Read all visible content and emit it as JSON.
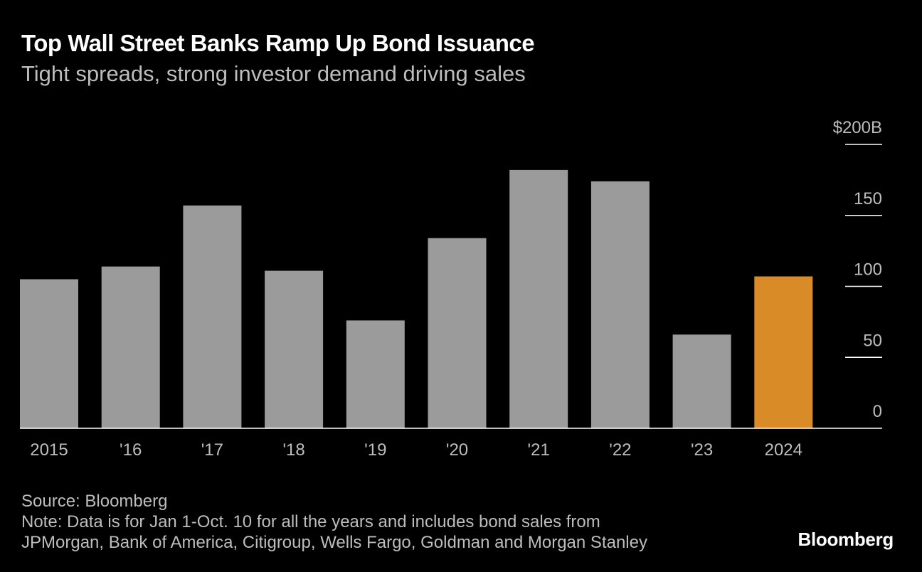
{
  "header": {
    "title": "Top Wall Street Banks Ramp Up Bond Issuance",
    "subtitle": "Tight spreads, strong investor demand driving sales"
  },
  "chart_data": {
    "type": "bar",
    "categories": [
      "2015",
      "'16",
      "'17",
      "'18",
      "'19",
      "'20",
      "'21",
      "'22",
      "'23",
      "2024"
    ],
    "values": [
      105,
      114,
      157,
      111,
      76,
      134,
      182,
      174,
      66,
      107
    ],
    "highlight_index": 9,
    "colors": {
      "default": "#9b9b9b",
      "highlight": "#d98b28",
      "axis": "#ffffff",
      "background": "#000000"
    },
    "ylim": [
      0,
      200
    ],
    "yticks": [
      {
        "value": 0,
        "label": "0"
      },
      {
        "value": 50,
        "label": "50"
      },
      {
        "value": 100,
        "label": "100"
      },
      {
        "value": 150,
        "label": "150"
      },
      {
        "value": 200,
        "label": "$200B"
      }
    ],
    "y_axis_side": "right",
    "grid": false
  },
  "footer": {
    "source": "Source: Bloomberg",
    "note_line1": "Note: Data is for Jan 1-Oct. 10 for all the years and includes bond sales from",
    "note_line2": "JPMorgan, Bank of America, Citigroup, Wells Fargo, Goldman and Morgan Stanley"
  },
  "brand": {
    "label": "Bloomberg"
  }
}
